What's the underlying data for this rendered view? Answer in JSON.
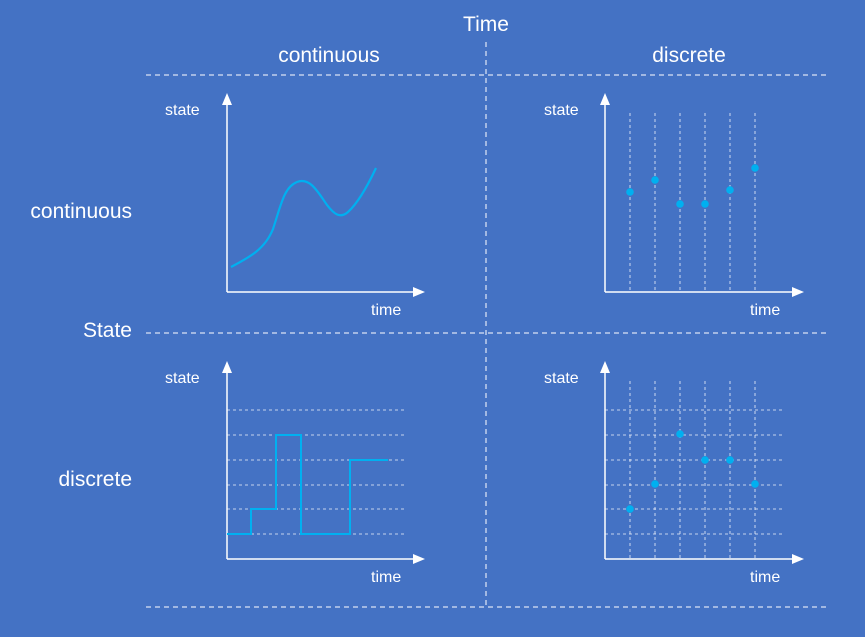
{
  "colors": {
    "background": "#4472c4",
    "curve": "#00b0f0",
    "text": "#ffffff"
  },
  "labels": {
    "time_header": "Time",
    "state_header": "State",
    "col_continuous": "continuous",
    "col_discrete": "discrete",
    "row_continuous": "continuous",
    "row_discrete": "discrete"
  },
  "panels": [
    {
      "id": "cont-cont",
      "ylabel": "state",
      "xlabel": "time"
    },
    {
      "id": "cont-disc-time",
      "ylabel": "state",
      "xlabel": "time"
    },
    {
      "id": "disc-cont-time",
      "ylabel": "state",
      "xlabel": "time"
    },
    {
      "id": "disc-disc",
      "ylabel": "state",
      "xlabel": "time"
    }
  ]
}
